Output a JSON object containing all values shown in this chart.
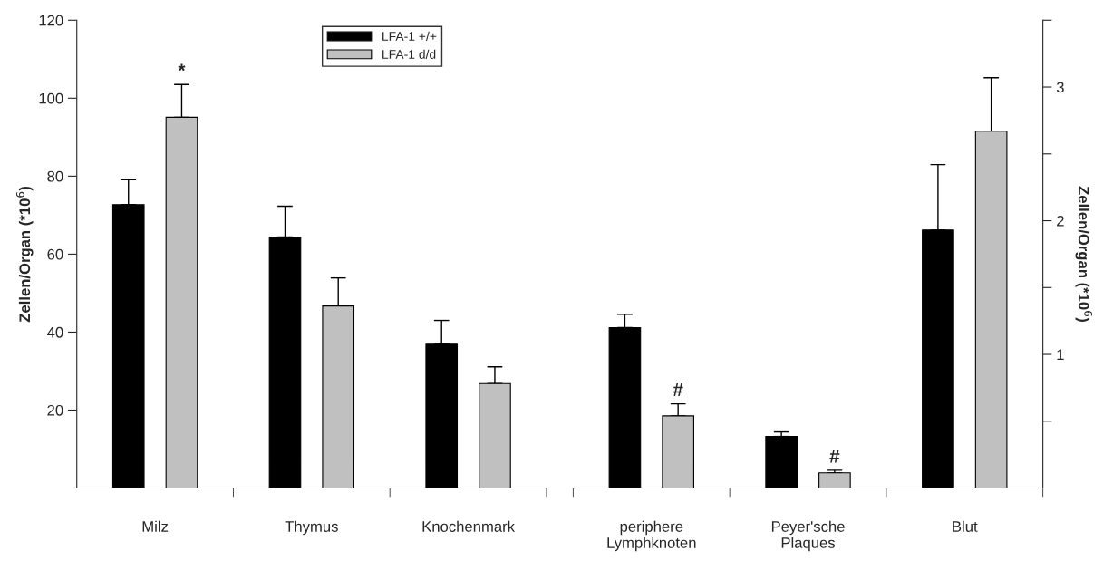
{
  "chart_data": [
    {
      "type": "bar",
      "categories": [
        "Milz",
        "Thymus",
        "Knochenmark"
      ],
      "ylabel": "Zellen/Organ (*10$^{6}$)",
      "ylim": [
        0,
        120
      ],
      "yticks": [
        20,
        40,
        60,
        80,
        100,
        120
      ],
      "legend": "top",
      "series": [
        {
          "name": "LFA-1 +/+",
          "color": "#000000",
          "values": [
            72.7,
            64.4,
            36.9
          ],
          "errors": [
            [
              72.7,
              79.1
            ],
            [
              64.4,
              72.3
            ],
            [
              36.9,
              43.0
            ]
          ]
        },
        {
          "name": "LFA-1 d/d",
          "color": "#c0c0c0",
          "values": [
            95.1,
            46.7,
            26.8
          ],
          "errors": [
            [
              95.1,
              103.5
            ],
            [
              46.7,
              53.9
            ],
            [
              26.8,
              31.1
            ]
          ],
          "value_labels": [
            "*",
            null,
            null
          ]
        }
      ]
    },
    {
      "type": "bar",
      "categories": [
        "periphere\nLymphknoten",
        "Peyer'sche\nPlaques",
        "Blut"
      ],
      "y2label": "Zellen/Organ (*10$^{6}$)",
      "y2lim": [
        0,
        3.5
      ],
      "y2ticks": [
        {
          "value": 0.5,
          "label": null
        },
        1,
        {
          "value": 1.5,
          "label": null
        },
        2,
        {
          "value": 2.5,
          "label": null
        },
        3,
        {
          "value": 3.5,
          "label": null
        }
      ],
      "series": [
        {
          "color": "#000000",
          "axis": "y2",
          "values": [
            1.2,
            0.386,
            1.93
          ],
          "errors": [
            [
              1.2,
              1.3
            ],
            [
              0.386,
              0.42
            ],
            [
              1.93,
              2.42
            ]
          ]
        },
        {
          "color": "#c0c0c0",
          "axis": "y2",
          "values": [
            0.54,
            0.114,
            2.67
          ],
          "errors": [
            [
              0.54,
              0.63
            ],
            [
              0.114,
              0.133
            ],
            [
              2.67,
              3.07
            ]
          ],
          "value_labels": [
            "#",
            "#",
            null
          ]
        }
      ]
    }
  ]
}
